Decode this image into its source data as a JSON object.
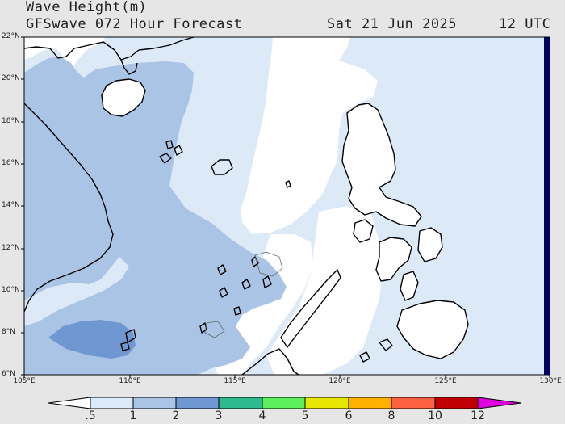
{
  "header": {
    "title": "Wave Height(m)",
    "model": "GFSwave 072 Hour Forecast",
    "date": "Sat 21 Jun 2025",
    "time": "12 UTC"
  },
  "map": {
    "lat_labels": [
      "22°N",
      "20°N",
      "18°N",
      "16°N",
      "14°N",
      "12°N",
      "10°N",
      "8°N",
      "6°N"
    ],
    "lon_labels": [
      "105°E",
      "110°E",
      "115°E",
      "120°E",
      "125°E",
      "130°E"
    ]
  },
  "colorbar": {
    "labels": [
      ".5",
      "1",
      "2",
      "3",
      "4",
      "5",
      "6",
      "8",
      "10",
      "12"
    ],
    "colors": [
      "#ffffff",
      "#dce9f7",
      "#aac4e6",
      "#6f97d2",
      "#2fb98e",
      "#5cf05c",
      "#e6e600",
      "#ffb000",
      "#ff6040",
      "#ff2a2a",
      "#c00000",
      "#e000e0"
    ]
  }
}
